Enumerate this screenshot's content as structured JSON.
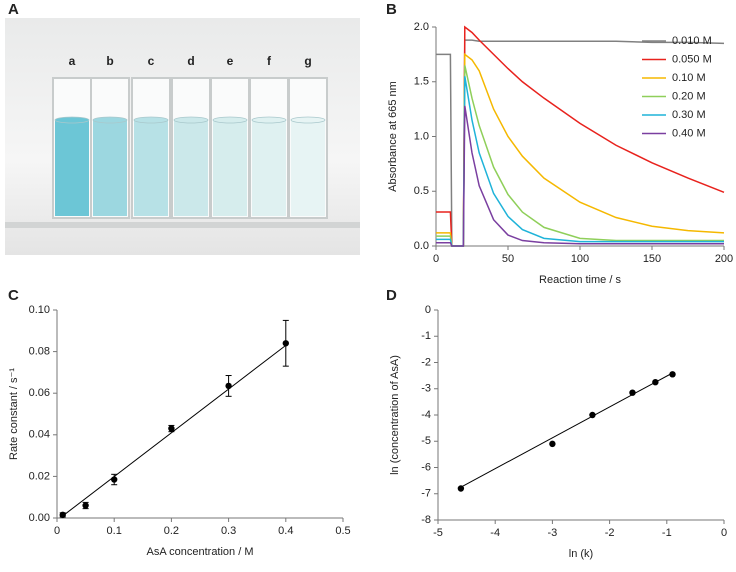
{
  "panels": [
    "A",
    "B",
    "C",
    "D"
  ],
  "photo": {
    "labels": [
      "a",
      "b",
      "c",
      "d",
      "e",
      "f",
      "g"
    ]
  },
  "chart_data": [
    {
      "type": "line",
      "xlabel": "Reaction time / s",
      "ylabel": "Absorbance at 665 nm",
      "x": [
        0,
        10,
        11,
        19,
        20,
        25,
        30,
        40,
        50,
        60,
        75,
        100,
        125,
        150,
        175,
        200
      ],
      "series": [
        {
          "name": "0.010 M",
          "color": "#808080",
          "values": [
            1.75,
            1.75,
            0,
            0,
            1.88,
            1.88,
            1.87,
            1.87,
            1.87,
            1.87,
            1.87,
            1.87,
            1.87,
            1.86,
            1.86,
            1.85
          ]
        },
        {
          "name": "0.050 M",
          "color": "#e8221d",
          "values": [
            0.31,
            0.31,
            0,
            0,
            2.0,
            1.95,
            1.88,
            1.75,
            1.62,
            1.5,
            1.35,
            1.12,
            0.92,
            0.76,
            0.62,
            0.49
          ]
        },
        {
          "name": "0.10 M",
          "color": "#f5b800",
          "values": [
            0.12,
            0.12,
            0,
            0,
            1.75,
            1.7,
            1.6,
            1.25,
            1.0,
            0.82,
            0.62,
            0.4,
            0.26,
            0.18,
            0.14,
            0.12
          ]
        },
        {
          "name": "0.20 M",
          "color": "#8fcf5a",
          "values": [
            0.09,
            0.09,
            0,
            0,
            1.65,
            1.35,
            1.1,
            0.72,
            0.47,
            0.31,
            0.17,
            0.07,
            0.05,
            0.05,
            0.05,
            0.05
          ]
        },
        {
          "name": "0.30 M",
          "color": "#1fb3d9",
          "values": [
            0.06,
            0.06,
            0,
            0,
            1.55,
            1.15,
            0.85,
            0.48,
            0.27,
            0.15,
            0.07,
            0.04,
            0.04,
            0.04,
            0.04,
            0.04
          ]
        },
        {
          "name": "0.40 M",
          "color": "#7a3fa0",
          "values": [
            0.03,
            0.03,
            0,
            0,
            1.28,
            0.85,
            0.55,
            0.24,
            0.1,
            0.05,
            0.03,
            0.02,
            0.02,
            0.02,
            0.02,
            0.02
          ]
        }
      ],
      "xlim": [
        0,
        200
      ],
      "xticks": [
        0,
        50,
        100,
        150,
        200
      ],
      "ylim": [
        0,
        2
      ],
      "yticks": [
        {
          "value": 0,
          "label": "0.0"
        },
        0.5,
        {
          "value": 1,
          "label": "1.0"
        },
        1.5,
        {
          "value": 2,
          "label": "2.0"
        }
      ],
      "legend": "upper right"
    },
    {
      "type": "scatter",
      "xlabel": "AsA concentration / M",
      "ylabel": "Rate constant  / s⁻¹",
      "color": "#000000",
      "x": [
        0.01,
        0.05,
        0.1,
        0.2,
        0.3,
        0.4
      ],
      "y": [
        0.0015,
        0.006,
        0.0185,
        0.043,
        0.0635,
        0.084
      ],
      "errors": [
        0.001,
        0.0015,
        0.0025,
        0.0015,
        0.005,
        0.011
      ],
      "trendline": {
        "x": [
          0.01,
          0.4
        ],
        "y": [
          0.001,
          0.083
        ]
      },
      "xlim": [
        0,
        0.5
      ],
      "xticks": [
        0,
        0.1,
        0.2,
        0.3,
        0.4,
        0.5
      ],
      "ylim": [
        0,
        0.1
      ],
      "yticks": [
        {
          "value": 0,
          "label": "0.00"
        },
        0.02,
        0.04,
        0.06,
        0.08,
        {
          "value": 0.1,
          "label": "0.10"
        }
      ]
    },
    {
      "type": "scatter",
      "xlabel": "ln (k)",
      "ylabel": "ln (concentration of AsA)",
      "color": "#000000",
      "x": [
        -4.6,
        -3.0,
        -2.3,
        -1.6,
        -1.2,
        -0.9
      ],
      "y": [
        -6.8,
        -5.1,
        -4.0,
        -3.15,
        -2.75,
        -2.45
      ],
      "trendline": {
        "x": [
          -4.6,
          -0.9
        ],
        "y": [
          -6.75,
          -2.4
        ]
      },
      "xlim": [
        -5,
        0
      ],
      "xticks": [
        -5,
        -4,
        -3,
        -2,
        -1,
        0
      ],
      "ylim": [
        -8,
        0
      ],
      "yticks": [
        -8,
        -7,
        -6,
        -5,
        -4,
        -3,
        -2,
        -1,
        0
      ]
    }
  ]
}
